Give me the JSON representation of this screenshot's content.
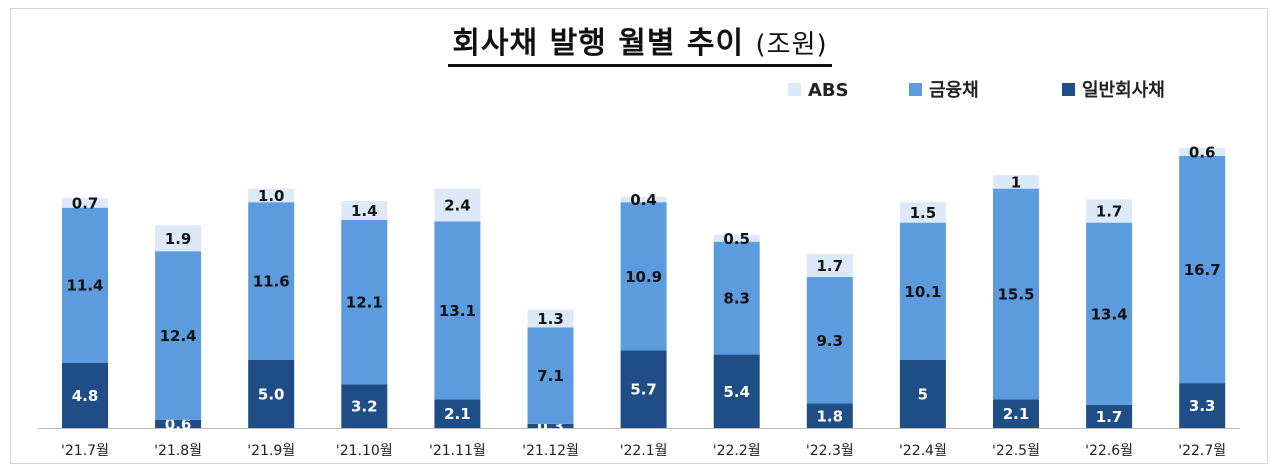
{
  "chart_data": {
    "type": "bar",
    "stacked": true,
    "title": "회사채 발행 월별 추이",
    "unit": "(조원)",
    "categories": [
      "'21.7월",
      "'21.8월",
      "'21.9월",
      "'21.10월",
      "'21.11월",
      "'21.12월",
      "'22.1월",
      "'22.2월",
      "'22.3월",
      "'22.4월",
      "'22.5월",
      "'22.6월",
      "'22.7월"
    ],
    "series": [
      {
        "name": "일반회사채",
        "color": "#1f4e86",
        "values": [
          4.8,
          0.6,
          5.0,
          3.2,
          2.1,
          0.3,
          5.7,
          5.4,
          1.8,
          5,
          2.1,
          1.7,
          3.3
        ],
        "labels": [
          "4.8",
          "0.6",
          "5.0",
          "3.2",
          "2.1",
          "0.3",
          "5.7",
          "5.4",
          "1.8",
          "5",
          "2.1",
          "1.7",
          "3.3"
        ]
      },
      {
        "name": "금융채",
        "color": "#5b9bde",
        "values": [
          11.4,
          12.4,
          11.6,
          12.1,
          13.1,
          7.1,
          10.9,
          8.3,
          9.3,
          10.1,
          15.5,
          13.4,
          16.7
        ],
        "labels": [
          "11.4",
          "12.4",
          "11.6",
          "12.1",
          "13.1",
          "7.1",
          "10.9",
          "8.3",
          "9.3",
          "10.1",
          "15.5",
          "13.4",
          "16.7"
        ]
      },
      {
        "name": "ABS",
        "color": "#dbe9f9",
        "values": [
          0.7,
          1.9,
          1.0,
          1.4,
          2.4,
          1.3,
          0.4,
          0.5,
          1.7,
          1.5,
          1,
          1.7,
          0.6
        ],
        "labels": [
          "0.7",
          "1.9",
          "1.0",
          "1.4",
          "2.4",
          "1.3",
          "0.4",
          "0.5",
          "1.7",
          "1.5",
          "1",
          "1.7",
          "0.6"
        ]
      }
    ],
    "legend": {
      "placement": "top-right",
      "order": [
        "ABS",
        "금융채",
        "일반회사채"
      ]
    },
    "grid": false
  }
}
